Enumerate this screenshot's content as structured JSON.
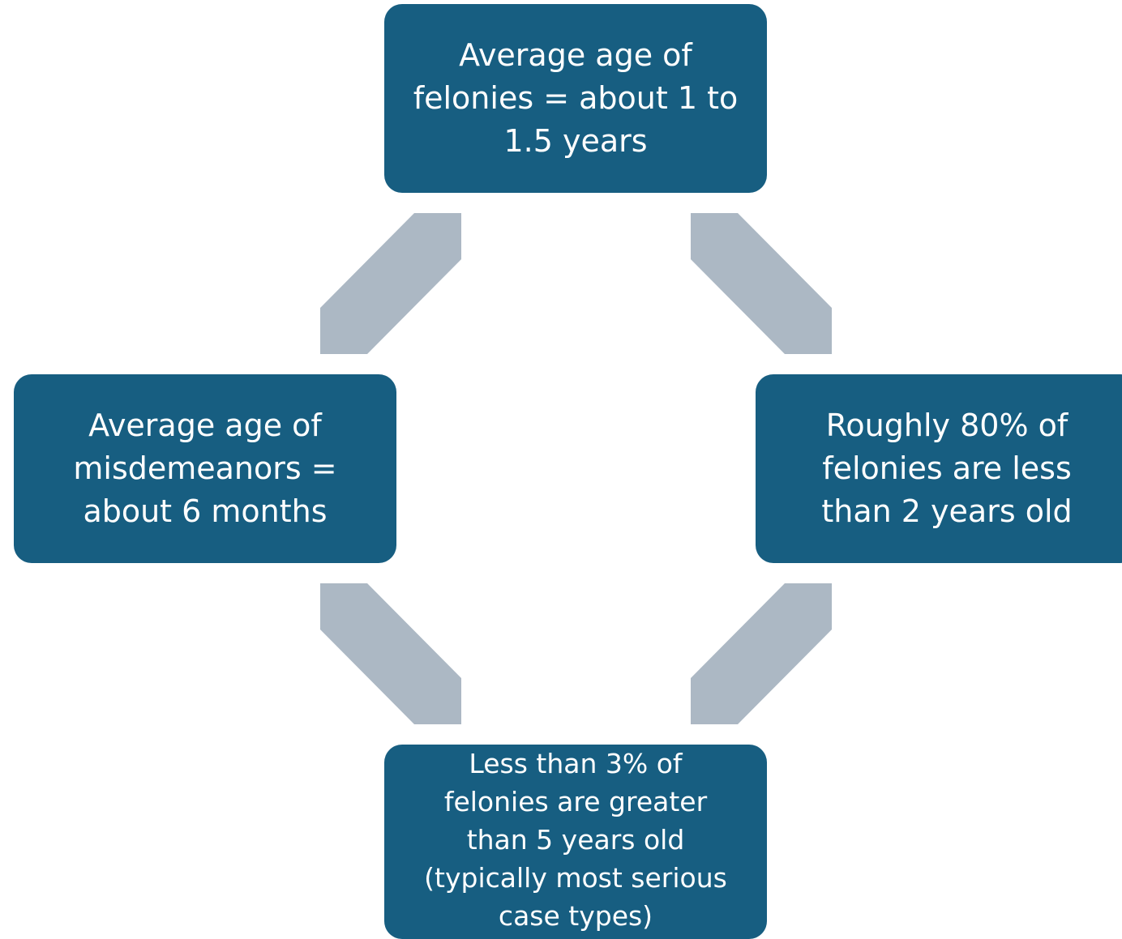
{
  "nodes": {
    "top": "Average age of\nfelonies = about 1 to\n1.5 years",
    "left": "Average age of\nmisdemeanors =\nabout 6 months",
    "right": "Roughly 80% of\nfelonies are less\nthan 2 years old",
    "bottom": "Less than 3% of\nfelonies are greater\nthan 5 years old\n(typically most serious\ncase types)"
  },
  "colors": {
    "box_fill": "#175e81",
    "box_text": "#ffffff",
    "arrow_fill": "#acb8c4",
    "background": "#ffffff"
  }
}
